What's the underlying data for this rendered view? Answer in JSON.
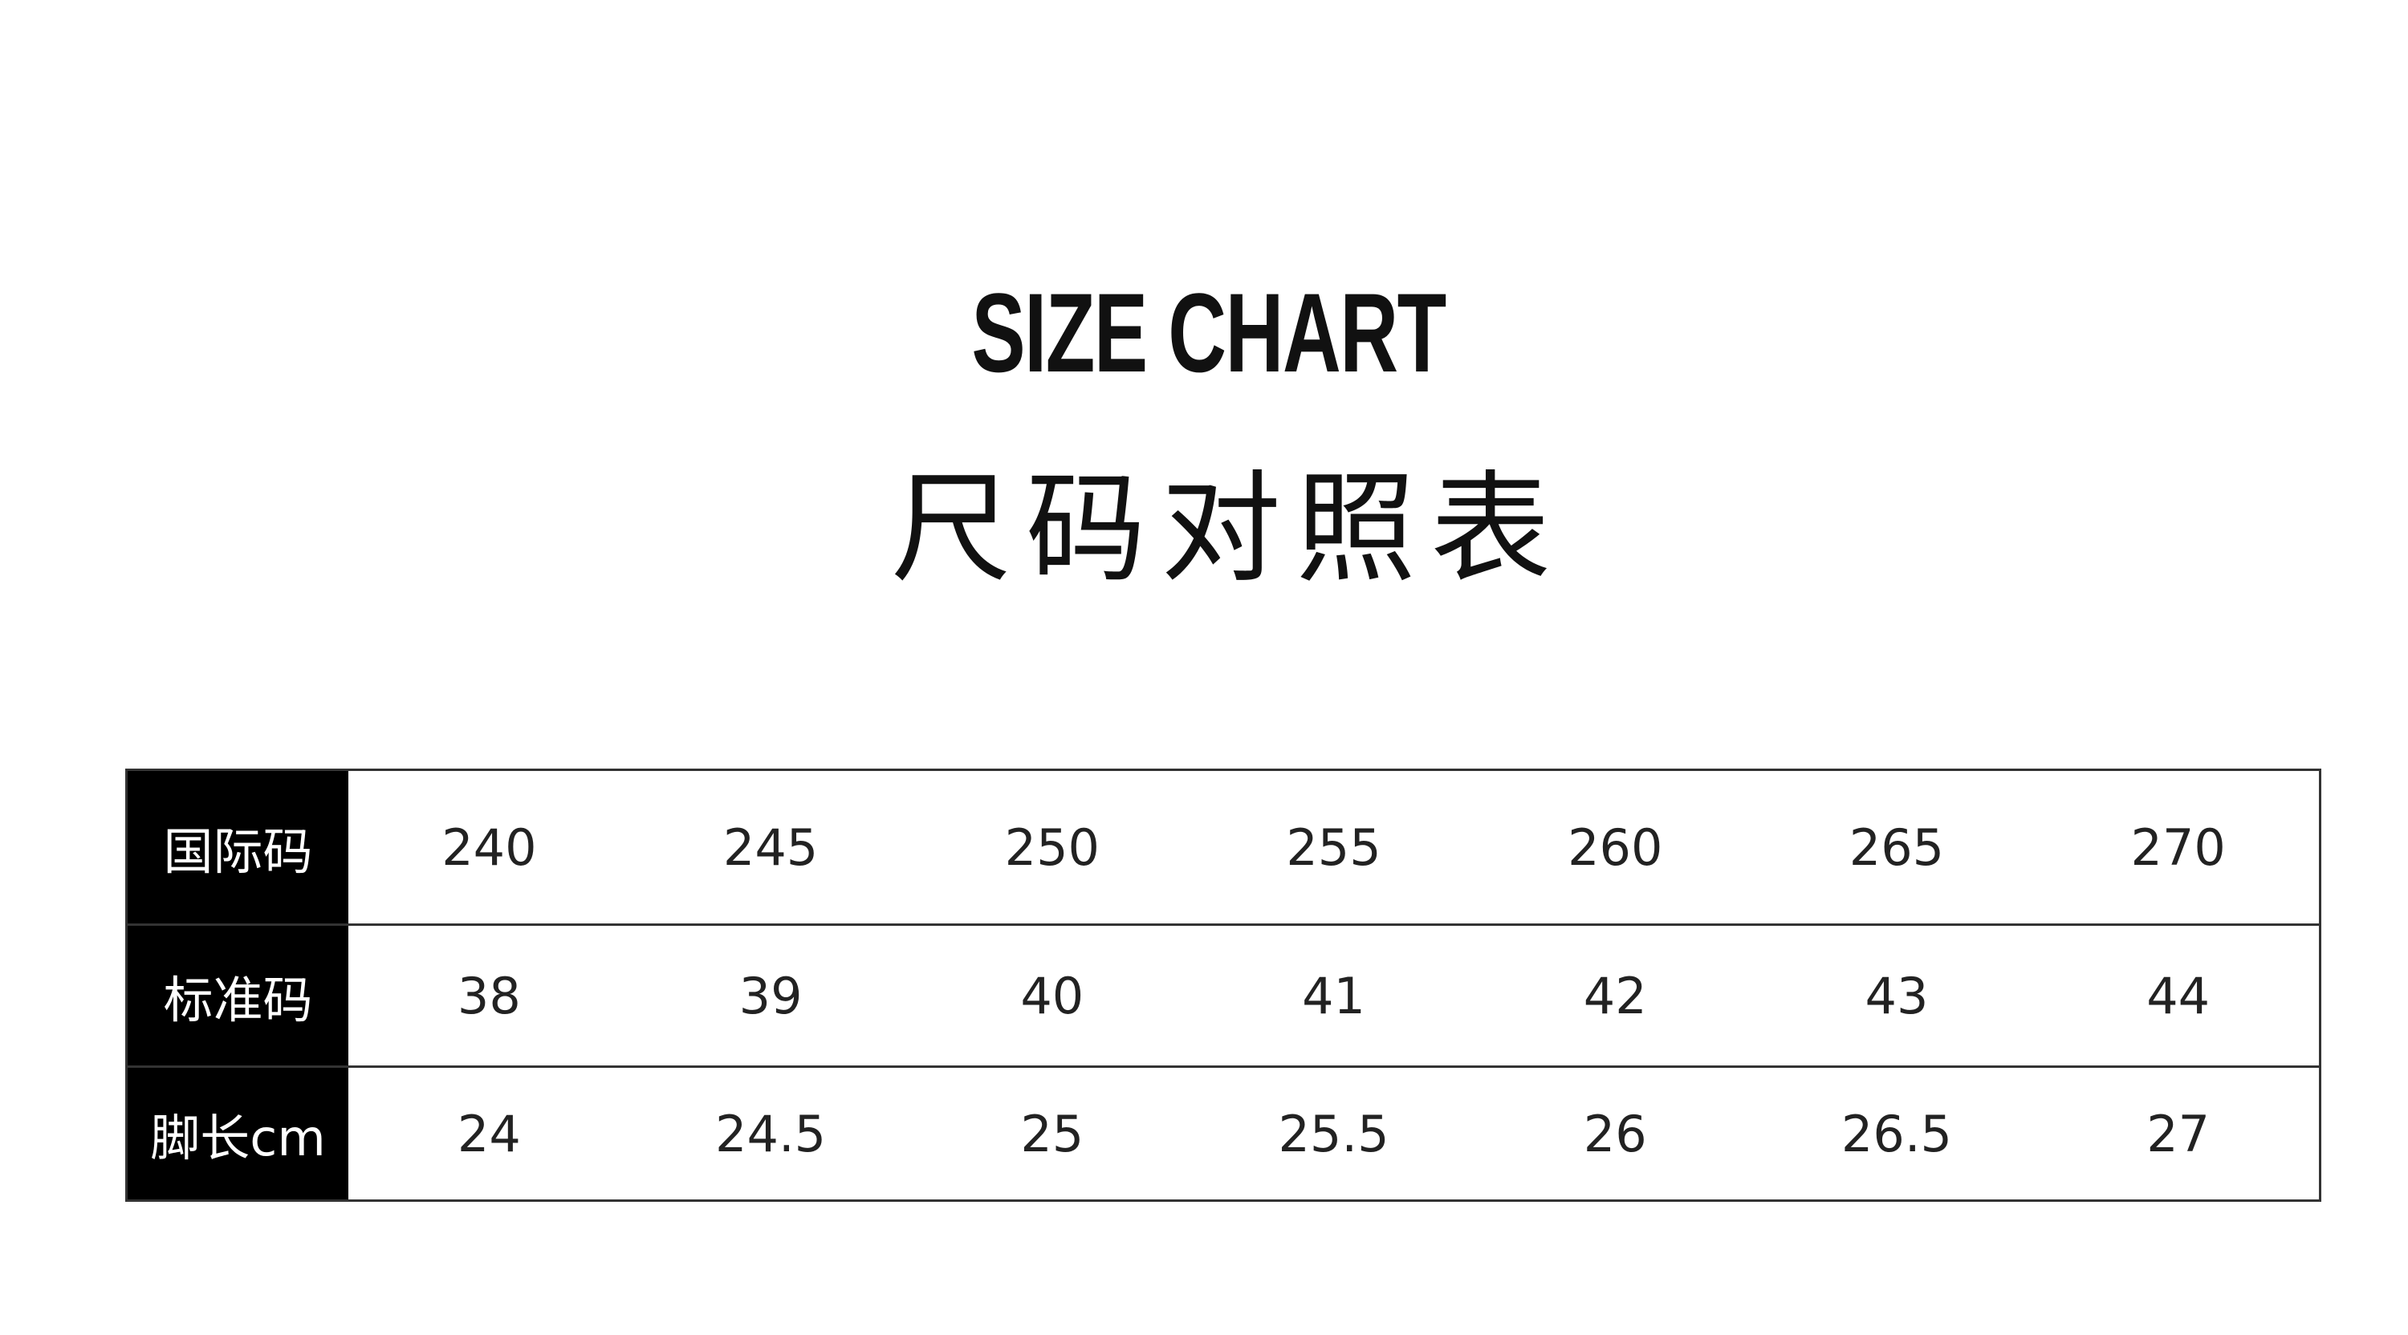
{
  "title_en": "SIZE CHART",
  "title_cn": "尺码对照表",
  "table": {
    "rows": [
      {
        "label": "国际码",
        "values": [
          "240",
          "245",
          "250",
          "255",
          "260",
          "265",
          "270"
        ]
      },
      {
        "label": "标准码",
        "values": [
          "38",
          "39",
          "40",
          "41",
          "42",
          "43",
          "44"
        ]
      },
      {
        "label": "脚长cm",
        "values": [
          "24",
          "24.5",
          "25",
          "25.5",
          "26",
          "26.5",
          "27"
        ]
      }
    ]
  }
}
